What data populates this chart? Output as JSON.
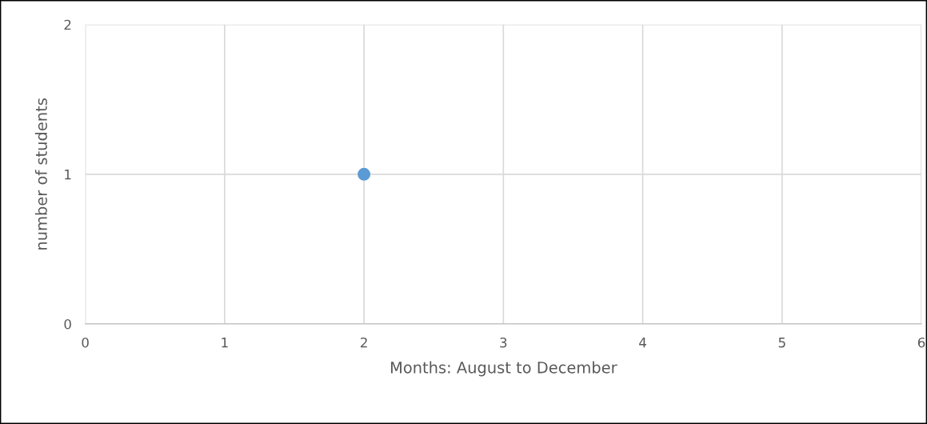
{
  "chart_data": {
    "type": "scatter",
    "xlabel": "Months: August to December",
    "ylabel": "number of students",
    "x": [
      2
    ],
    "values": [
      1
    ],
    "color": "#5b9bd5",
    "marker": "circle",
    "xlim": [
      0,
      6
    ],
    "xticks": [
      0,
      1,
      2,
      3,
      4,
      5,
      6
    ],
    "ylim": [
      0,
      2
    ],
    "yticks": [
      0,
      1,
      2
    ],
    "grid": true,
    "legend": false
  }
}
